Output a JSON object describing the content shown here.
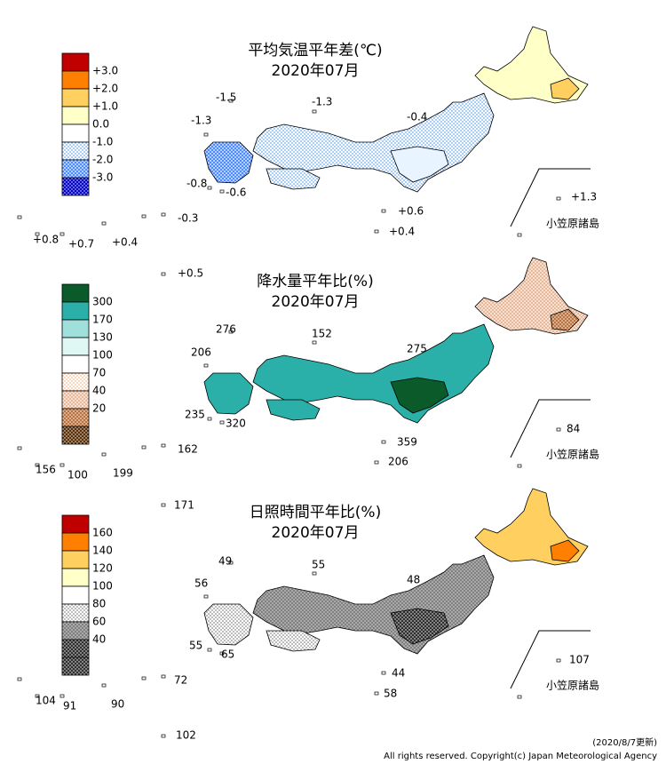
{
  "panels": [
    {
      "title": "平均気温平年差(℃)",
      "date": "2020年07月",
      "legend": [
        "+3.0",
        "+2.0",
        "+1.0",
        "0.0",
        "-1.0",
        "-2.0",
        "-3.0"
      ],
      "values": [
        "-1.5",
        "-1.3",
        "-1.3",
        "-0.4",
        "-0.8",
        "-0.6",
        "+1.3",
        "+0.6",
        "-0.3",
        "+0.8",
        "+0.7",
        "+0.4",
        "+0.4",
        "+0.5"
      ],
      "bonin_label": "小笠原諸島"
    },
    {
      "title": "降水量平年比(%)",
      "date": "2020年07月",
      "legend": [
        "300",
        "170",
        "130",
        "100",
        "70",
        "40",
        "20"
      ],
      "values": [
        "276",
        "152",
        "206",
        "275",
        "235",
        "320",
        "84",
        "359",
        "162",
        "156",
        "100",
        "199",
        "206",
        "171"
      ],
      "bonin_label": "小笠原諸島"
    },
    {
      "title": "日照時間平年比(%)",
      "date": "2020年07月",
      "legend": [
        "160",
        "140",
        "120",
        "100",
        "80",
        "60",
        "40"
      ],
      "values": [
        "49",
        "55",
        "56",
        "48",
        "55",
        "65",
        "107",
        "44",
        "72",
        "104",
        "91",
        "90",
        "58",
        "102"
      ],
      "bonin_label": "小笠原諸島"
    }
  ],
  "footer": {
    "updated": "(2020/8/7更新)",
    "copyright": "All rights reserved. Copyright(c) Japan Meteorological Agency"
  }
}
